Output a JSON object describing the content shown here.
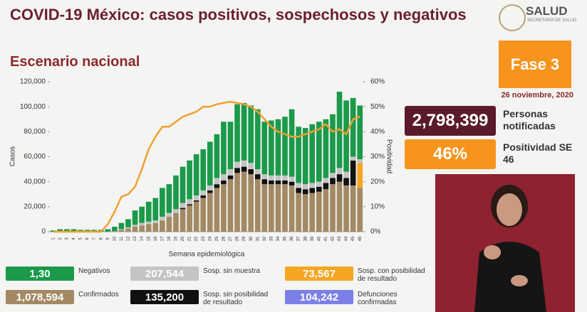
{
  "header": {
    "title": "COVID-19 México: casos positivos, sospechosos y negativos",
    "logo": "SALUD",
    "logo_sub": "SECRETARÍA DE SALUD"
  },
  "panel": {
    "phase": "Fase 3",
    "date": "26 noviembre, 2020",
    "notified": "2,798,399",
    "notified_label": "Personas notificadas",
    "positivity": 46,
    "positivity_label": "%",
    "positivity_title": "Positividad SE 46"
  },
  "chart_data": {
    "type": "stacked_bar_line",
    "subtitle": "Escenario nacional",
    "ylabel": "Casos",
    "y2label": "Positividad",
    "xlabel": "Semana epidemiológica",
    "categories": [
      "1",
      "2",
      "3",
      "4",
      "5",
      "6",
      "7",
      "8",
      "9",
      "10",
      "11",
      "12",
      "13",
      "14",
      "15",
      "16",
      "17",
      "18",
      "19",
      "20",
      "21",
      "22",
      "23",
      "24",
      "25",
      "26",
      "27",
      "28",
      "29",
      "30",
      "31",
      "32",
      "33",
      "34",
      "35",
      "36",
      "37",
      "38",
      "39",
      "40",
      "41",
      "42",
      "43",
      "44",
      "45",
      "46"
    ],
    "ylim": [
      0,
      120000
    ],
    "yticks": [
      {
        "value": 0,
        "label": "0"
      },
      {
        "value": 20000,
        "label": "20,000"
      },
      {
        "value": 40000,
        "label": "40,000"
      },
      {
        "value": 60000,
        "label": "60,000"
      },
      {
        "value": 80000,
        "label": "80,000"
      },
      {
        "value": 100000,
        "label": "100,000"
      },
      {
        "value": 120000,
        "label": "120,000"
      }
    ],
    "y2lim": [
      0,
      60
    ],
    "y2ticks": [
      {
        "value": 0,
        "label": "0%"
      },
      {
        "value": 10,
        "label": "10%"
      },
      {
        "value": 20,
        "label": "20%"
      },
      {
        "value": 30,
        "label": "30%"
      },
      {
        "value": 40,
        "label": "40%"
      },
      {
        "value": 50,
        "label": "50%"
      },
      {
        "value": 60,
        "label": "60%"
      }
    ],
    "series": [
      {
        "name": "Confirmados",
        "total": "1,078,594",
        "color": "#a38a64",
        "values": [
          0,
          0,
          0,
          0,
          0,
          0,
          0,
          0,
          100,
          500,
          1500,
          2500,
          4000,
          5000,
          6000,
          7000,
          9000,
          12000,
          15000,
          18000,
          21000,
          24000,
          27000,
          31000,
          35000,
          38000,
          42000,
          47000,
          48000,
          46000,
          42000,
          38000,
          38000,
          38000,
          38000,
          37000,
          31000,
          30000,
          31000,
          32000,
          34000,
          38000,
          40000,
          37000,
          37000,
          35000
        ]
      },
      {
        "name": "Sosp. sin posibilidad de resultado",
        "total": "135,200",
        "color": "#111111",
        "values": [
          0,
          0,
          0,
          0,
          0,
          0,
          0,
          0,
          0,
          0,
          0,
          0,
          0,
          0,
          0,
          0,
          0,
          0,
          0,
          1000,
          1000,
          1000,
          2000,
          2000,
          3000,
          3000,
          3000,
          4000,
          4000,
          4000,
          4000,
          4000,
          3000,
          3000,
          3000,
          3000,
          4000,
          4000,
          4000,
          4000,
          5000,
          5000,
          6000,
          6000,
          20000,
          0
        ]
      },
      {
        "name": "Sosp. con posibilidad de resultado",
        "total": "73,567",
        "color": "#f5a623",
        "values": [
          0,
          0,
          0,
          0,
          0,
          0,
          0,
          0,
          0,
          0,
          0,
          0,
          0,
          0,
          0,
          0,
          0,
          0,
          0,
          0,
          0,
          0,
          0,
          0,
          0,
          0,
          0,
          0,
          0,
          0,
          0,
          0,
          0,
          0,
          0,
          0,
          0,
          0,
          0,
          0,
          0,
          0,
          0,
          0,
          0,
          20000
        ]
      },
      {
        "name": "Sosp. sin muestra",
        "total": "207,544",
        "color": "#c4c4c4",
        "values": [
          0,
          0,
          0,
          0,
          0,
          0,
          0,
          0,
          0,
          0,
          500,
          1000,
          1500,
          2000,
          2000,
          2000,
          3000,
          3000,
          3000,
          4000,
          4000,
          4000,
          4000,
          4000,
          5000,
          5000,
          5000,
          5000,
          5000,
          5000,
          4000,
          4000,
          4000,
          4000,
          4000,
          4000,
          4000,
          4000,
          4000,
          4000,
          4000,
          4000,
          5000,
          5000,
          3000,
          3000
        ]
      },
      {
        "name": "Negativos",
        "total": "1,30",
        "color": "#1a9a4a",
        "values": [
          1000,
          2000,
          2000,
          2000,
          1500,
          1500,
          1500,
          1500,
          1900,
          3500,
          5000,
          6500,
          11500,
          13000,
          16000,
          18000,
          23000,
          23000,
          27000,
          29000,
          31000,
          33000,
          33000,
          35000,
          35000,
          42000,
          38000,
          46000,
          46000,
          46000,
          48000,
          42000,
          44000,
          45000,
          47000,
          54000,
          45000,
          45000,
          47000,
          48000,
          47000,
          47000,
          61000,
          57000,
          47000,
          43000
        ]
      },
      {
        "axis": "y2",
        "color": "#f0a030",
        "values": [
          0,
          0,
          0,
          0,
          0,
          0,
          0,
          0,
          3,
          8,
          14,
          15,
          18,
          25,
          33,
          38,
          42,
          42,
          44,
          46,
          47,
          48,
          50,
          50,
          51,
          51.5,
          52,
          51.5,
          51,
          50,
          48,
          45,
          42,
          40,
          39,
          38,
          38,
          39,
          40,
          41,
          43,
          40,
          41,
          39,
          45,
          46
        ]
      }
    ],
    "legend_extra": {
      "name": "Defunciones confirmadas",
      "total": "104,242",
      "color": "#7b7fe6"
    }
  }
}
